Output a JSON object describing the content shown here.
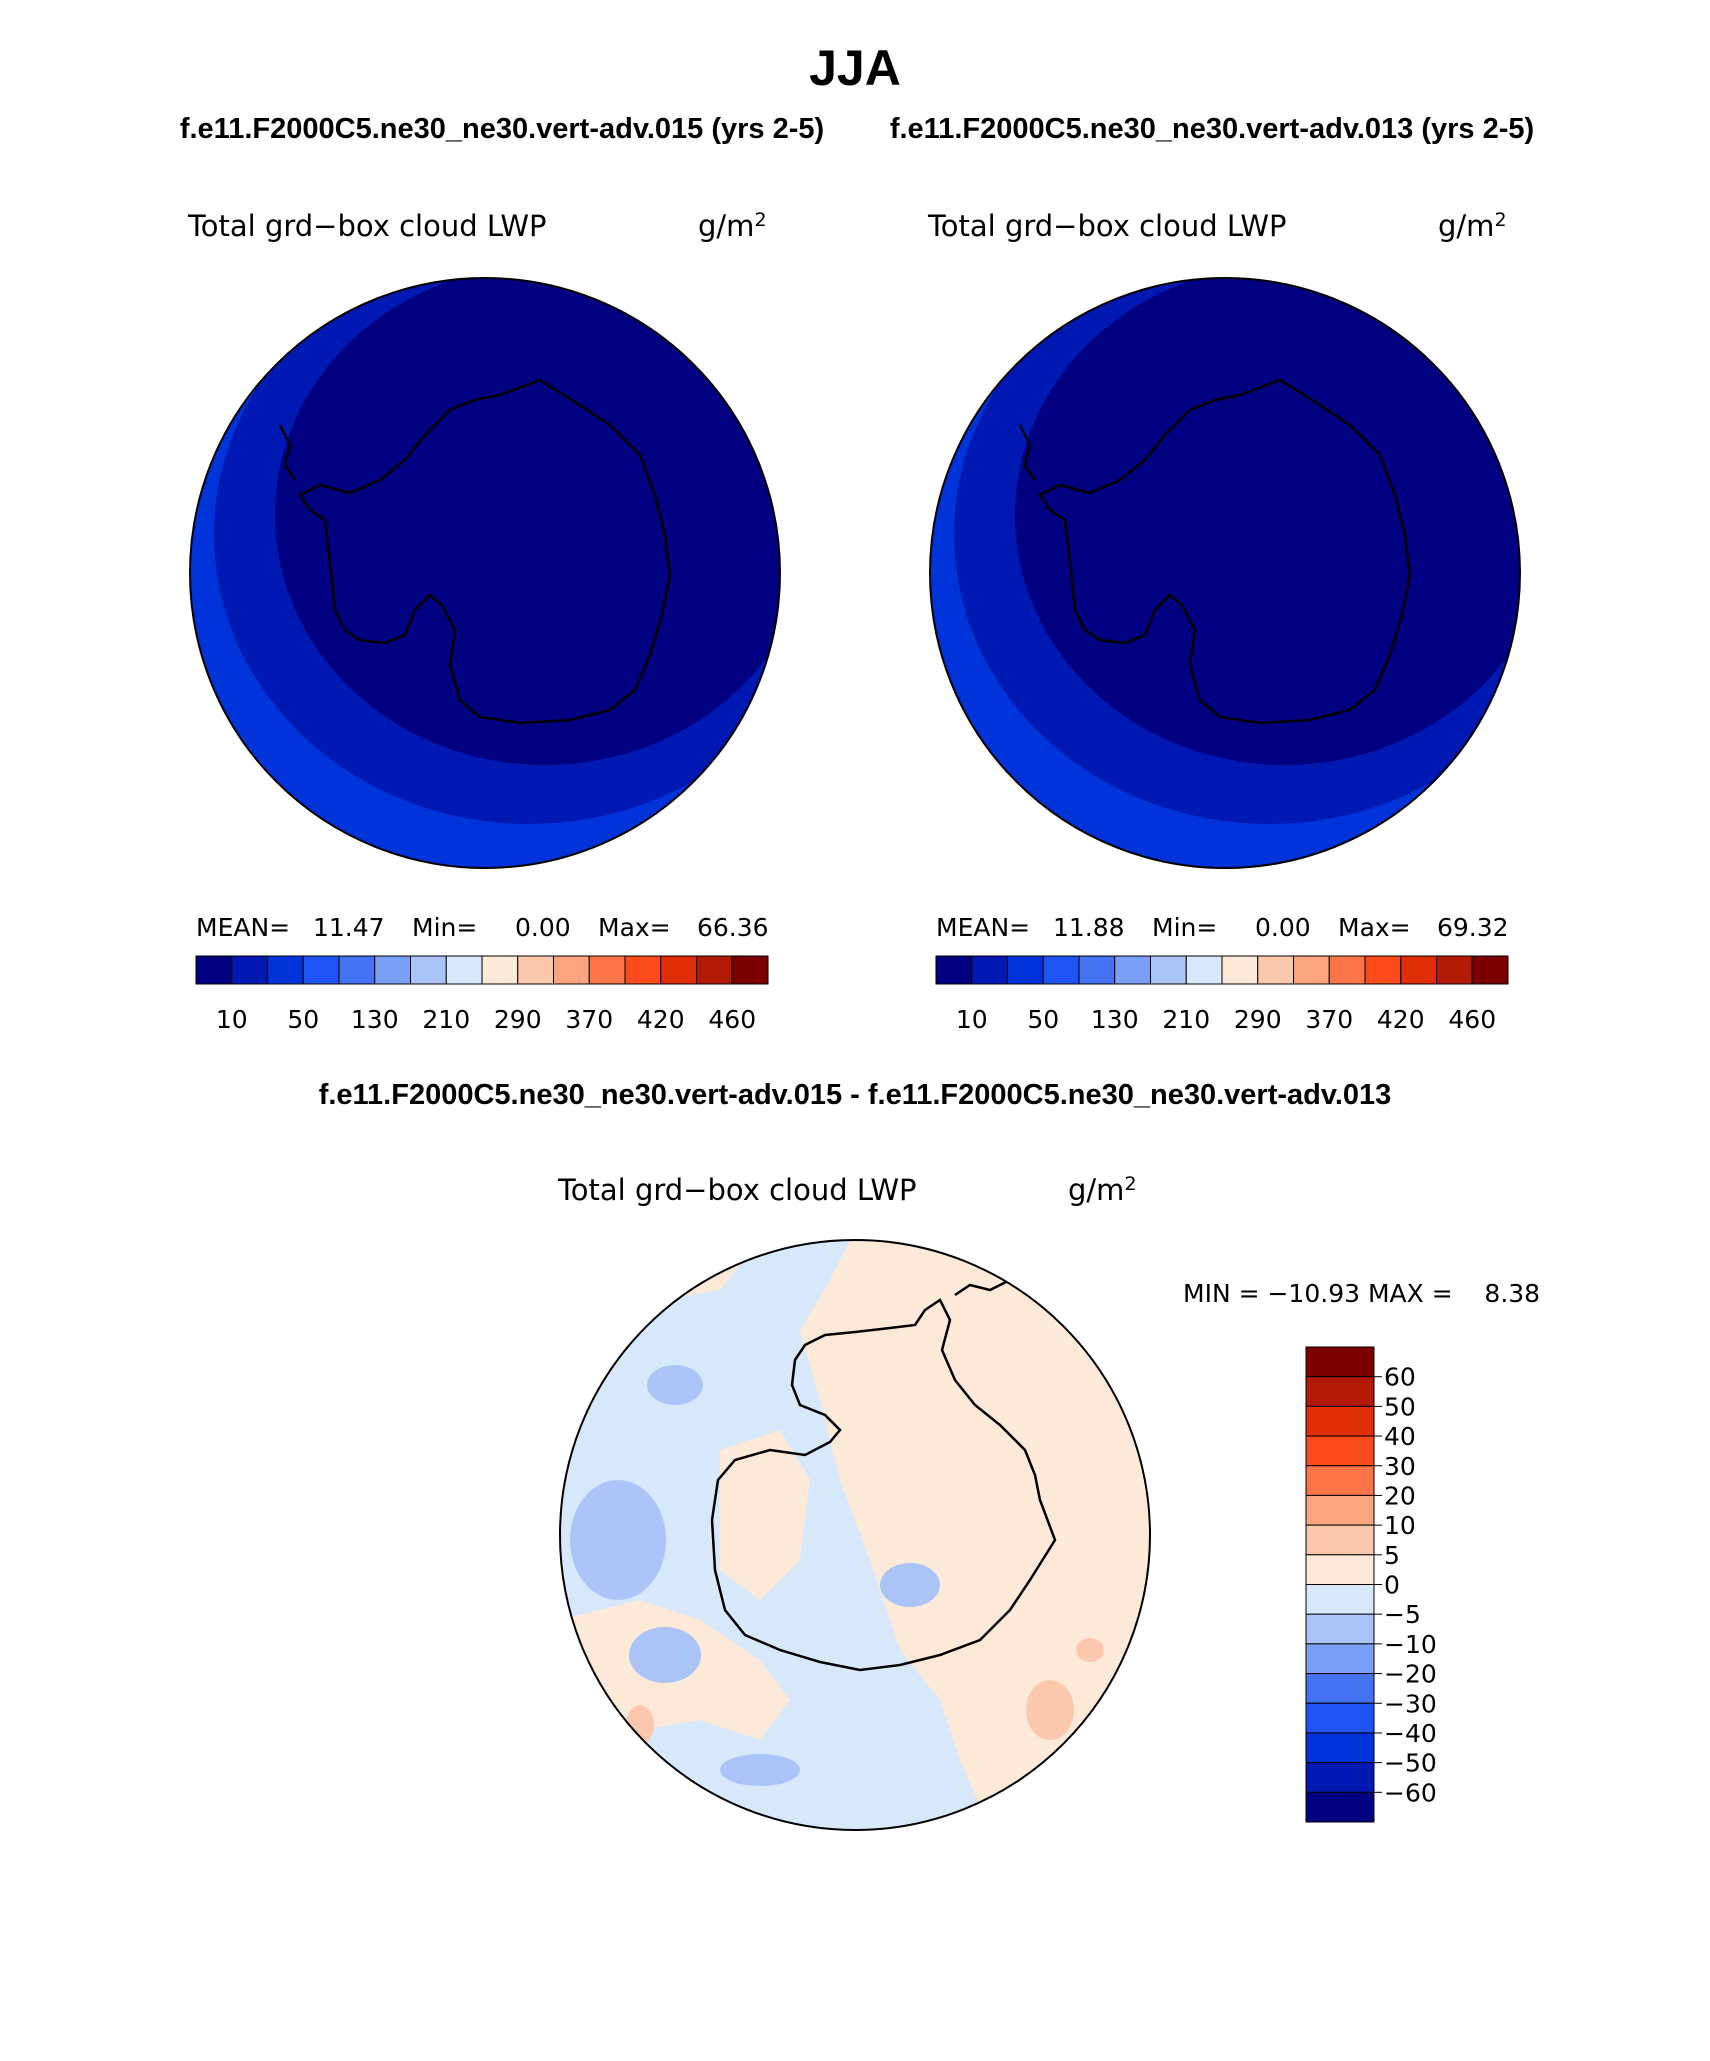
{
  "title": "JJA",
  "cases": {
    "left": "f.e11.F2000C5.ne30_ne30.vert-adv.015 (yrs 2-5)",
    "right": "f.e11.F2000C5.ne30_ne30.vert-adv.013 (yrs 2-5)"
  },
  "diff_title": "f.e11.F2000C5.ne30_ne30.vert-adv.015 - f.e11.F2000C5.ne30_ne30.vert-adv.013",
  "variable": "Total grd−box cloud LWP",
  "units": "g/m",
  "units_exp": "2",
  "panels": [
    {
      "mean_label": "MEAN=",
      "mean": "11.47",
      "min_label": "Min=",
      "min": "0.00",
      "max_label": "Max=",
      "max": "66.36"
    },
    {
      "mean_label": "MEAN=",
      "mean": "11.88",
      "min_label": "Min=",
      "min": "0.00",
      "max_label": "Max=",
      "max": "69.32"
    }
  ],
  "diff_stats": "MIN = −10.93 MAX =    8.38",
  "colorbar_top": {
    "colors": [
      "#000080",
      "#0019b3",
      "#0033d9",
      "#1f53f5",
      "#4472f2",
      "#7aa0f5",
      "#aac4f7",
      "#d8e8fb",
      "#fde9d8",
      "#fcc8ad",
      "#fba57f",
      "#fb7548",
      "#fb4a1c",
      "#e02e08",
      "#b21a05",
      "#7d0000"
    ],
    "labels": [
      "10",
      "50",
      "130",
      "210",
      "290",
      "370",
      "420",
      "460"
    ]
  },
  "colorbar_diff": {
    "colors": [
      "#7d0000",
      "#b21a05",
      "#e02e08",
      "#fb4a1c",
      "#fb7548",
      "#fba57f",
      "#fcc8ad",
      "#fde9d8",
      "#d8e8fb",
      "#aac4f7",
      "#7aa0f5",
      "#4472f2",
      "#1f53f5",
      "#0033d9",
      "#0019b3",
      "#000080"
    ],
    "labels": [
      "60",
      "50",
      "40",
      "30",
      "20",
      "10",
      "5",
      "0",
      "−5",
      "−10",
      "−20",
      "−30",
      "−40",
      "−50",
      "−60"
    ]
  }
}
